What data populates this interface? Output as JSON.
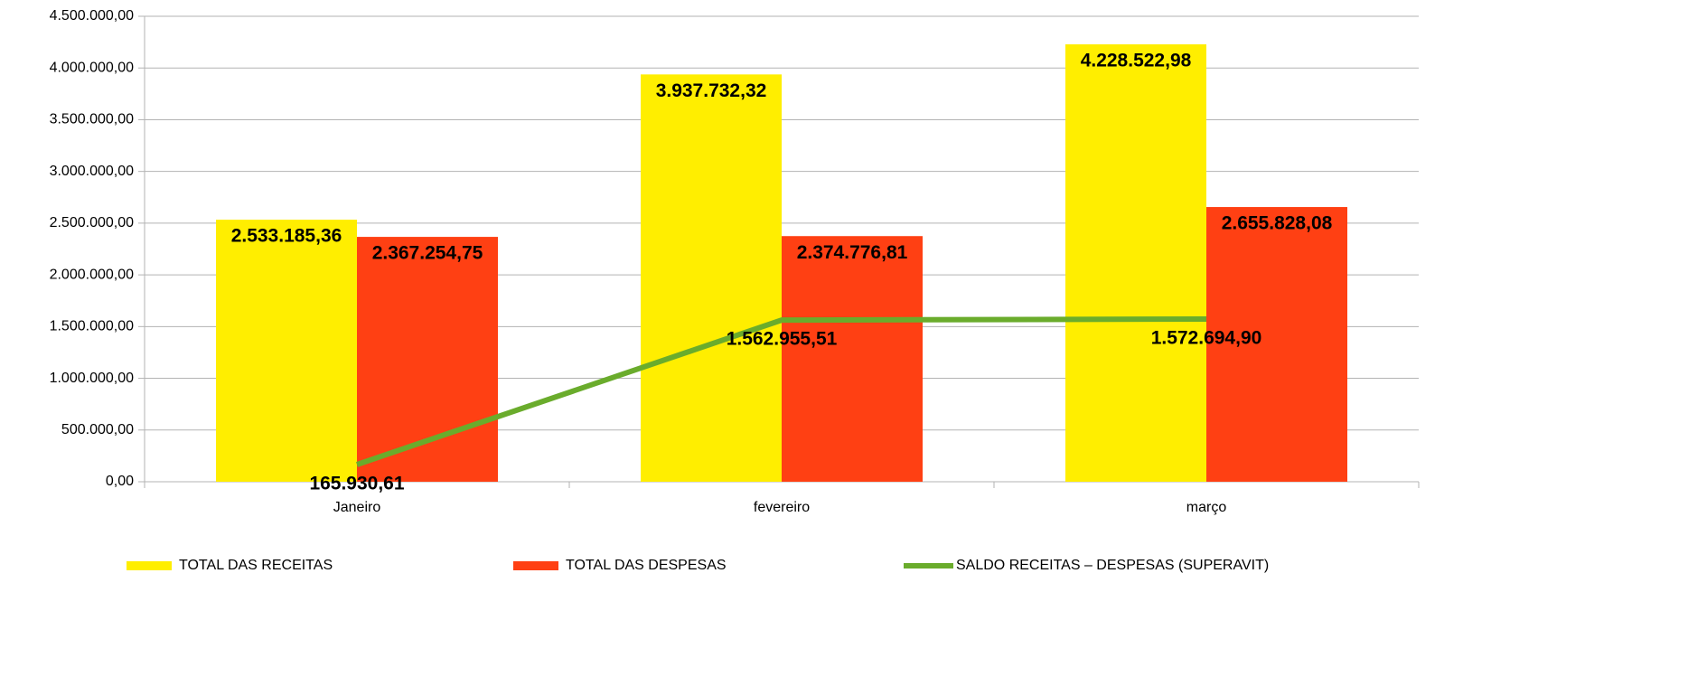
{
  "chart_data": {
    "type": "bar",
    "categories": [
      "Janeiro",
      "fevereiro",
      "março"
    ],
    "series": [
      {
        "name": "TOTAL DAS RECEITAS",
        "type": "bar",
        "color": "#ffee00",
        "values": [
          2533185.36,
          3937732.32,
          4228522.98
        ],
        "value_labels": [
          "2.533.185,36",
          "3.937.732,32",
          "4.228.522,98"
        ]
      },
      {
        "name": "TOTAL DAS DESPESAS",
        "type": "bar",
        "color": "#ff4013",
        "values": [
          2367254.75,
          2374776.81,
          2655828.08
        ],
        "value_labels": [
          "2.367.254,75",
          "2.374.776,81",
          "2.655.828,08"
        ]
      },
      {
        "name": "SALDO RECEITAS – DESPESAS (SUPERAVIT)",
        "type": "line",
        "color": "#6aac2c",
        "values": [
          165930.61,
          1562955.51,
          1572694.9
        ],
        "value_labels": [
          "165.930,61",
          "1.562.955,51",
          "1.572.694,90"
        ]
      }
    ],
    "ylim": [
      0,
      4500000
    ],
    "yticks": [
      {
        "value": 0,
        "label": "0,00"
      },
      {
        "value": 500000,
        "label": "500.000,00"
      },
      {
        "value": 1000000,
        "label": "1.000.000,00"
      },
      {
        "value": 1500000,
        "label": "1.500.000,00"
      },
      {
        "value": 2000000,
        "label": "2.000.000,00"
      },
      {
        "value": 2500000,
        "label": "2.500.000,00"
      },
      {
        "value": 3000000,
        "label": "3.000.000,00"
      },
      {
        "value": 3500000,
        "label": "3.500.000,00"
      },
      {
        "value": 4000000,
        "label": "4.000.000,00"
      },
      {
        "value": 4500000,
        "label": "4.500.000,00"
      }
    ],
    "grid": true,
    "legend": "bottom"
  }
}
